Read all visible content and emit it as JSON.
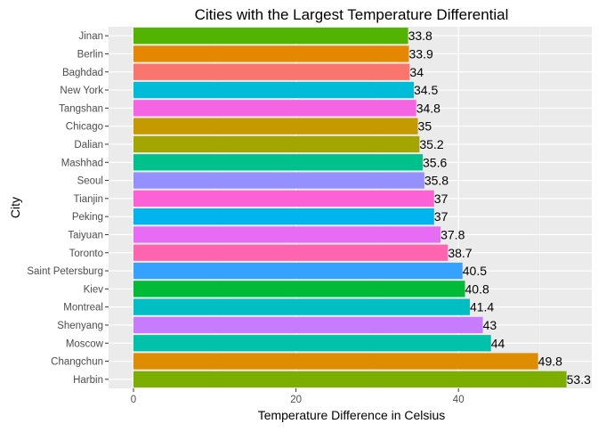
{
  "chart_data": {
    "type": "bar",
    "orientation": "horizontal",
    "title": "Cities with the Largest Temperature Differential",
    "xlabel": "Temperature Difference in Celsius",
    "ylabel": "City",
    "xlim": [
      0,
      54
    ],
    "x_ticks": [
      0,
      20,
      40
    ],
    "grid": true,
    "legend": "none",
    "categories": [
      "Harbin",
      "Changchun",
      "Moscow",
      "Shenyang",
      "Montreal",
      "Kiev",
      "Saint Petersburg",
      "Toronto",
      "Taiyuan",
      "Peking",
      "Tianjin",
      "Seoul",
      "Mashhad",
      "Dalian",
      "Chicago",
      "Tangshan",
      "New York",
      "Baghdad",
      "Berlin",
      "Jinan"
    ],
    "values": [
      53.3,
      49.8,
      44,
      43,
      41.4,
      40.8,
      40.5,
      38.7,
      37.8,
      37,
      37,
      35.8,
      35.6,
      35.2,
      35,
      34.8,
      34.5,
      34,
      33.9,
      33.8
    ],
    "value_labels": [
      "53.3",
      "49.8",
      "44",
      "43",
      "41.4",
      "40.8",
      "40.5",
      "38.7",
      "37.8",
      "37",
      "37",
      "35.8",
      "35.6",
      "35.2",
      "35",
      "34.8",
      "34.5",
      "34",
      "33.9",
      "33.8"
    ],
    "colors": [
      "#7CAE00",
      "#DE8C00",
      "#00C1A9",
      "#C77CFF",
      "#00BFC4",
      "#00BA38",
      "#35A2FF",
      "#FF64B0",
      "#E76BF3",
      "#00B4F0",
      "#FC61D5",
      "#9590FF",
      "#00C08B",
      "#A3A500",
      "#C49A00",
      "#F564E3",
      "#00BCD8",
      "#F8766D",
      "#E58700",
      "#53B400"
    ]
  },
  "colors": {
    "panel_background": "#EBEBEB",
    "grid_major": "#FFFFFF",
    "axis_text": "#4D4D4D",
    "title_text": "#000000"
  }
}
